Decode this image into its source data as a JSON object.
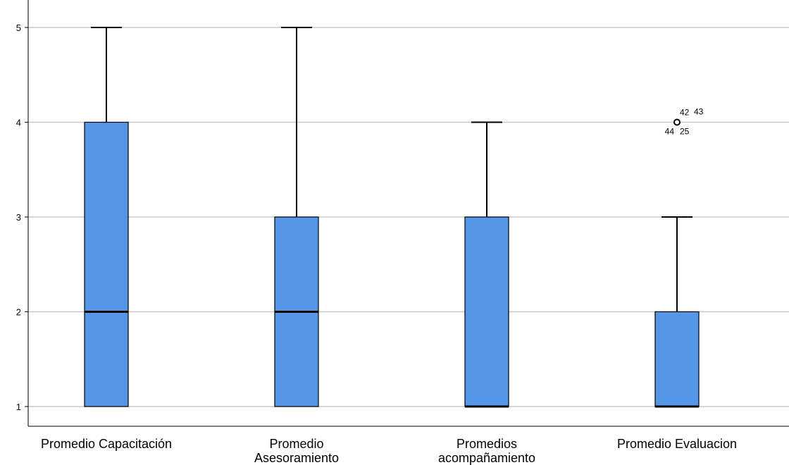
{
  "chart_data": {
    "type": "box",
    "title": "",
    "xlabel": "",
    "ylabel": "",
    "ylim": [
      0.8,
      5.25
    ],
    "y_ticks": [
      1,
      2,
      3,
      4,
      5
    ],
    "grid": true,
    "box_color": "#5596e6",
    "categories": [
      "Promedio Capacitación",
      "Promedio Asesoramiento",
      "Promedios acompañamiento",
      "Promedio Evaluacion"
    ],
    "category_label_lines": [
      [
        "Promedio Capacitación"
      ],
      [
        "Promedio",
        "Asesoramiento"
      ],
      [
        "Promedios",
        "acompañamiento"
      ],
      [
        "Promedio Evaluacion"
      ]
    ],
    "boxes": [
      {
        "min": 1,
        "q1": 1,
        "median": 2,
        "q3": 4,
        "max": 5,
        "outliers": []
      },
      {
        "min": 1,
        "q1": 1,
        "median": 2,
        "q3": 3,
        "max": 5,
        "outliers": []
      },
      {
        "min": 1,
        "q1": 1,
        "median": 1,
        "q3": 3,
        "max": 4,
        "outliers": []
      },
      {
        "min": 1,
        "q1": 1,
        "median": 1,
        "q3": 2,
        "max": 3,
        "outliers": [
          {
            "value": 4,
            "labels": [
              "42",
              "43",
              "44",
              "25"
            ]
          }
        ]
      }
    ]
  }
}
